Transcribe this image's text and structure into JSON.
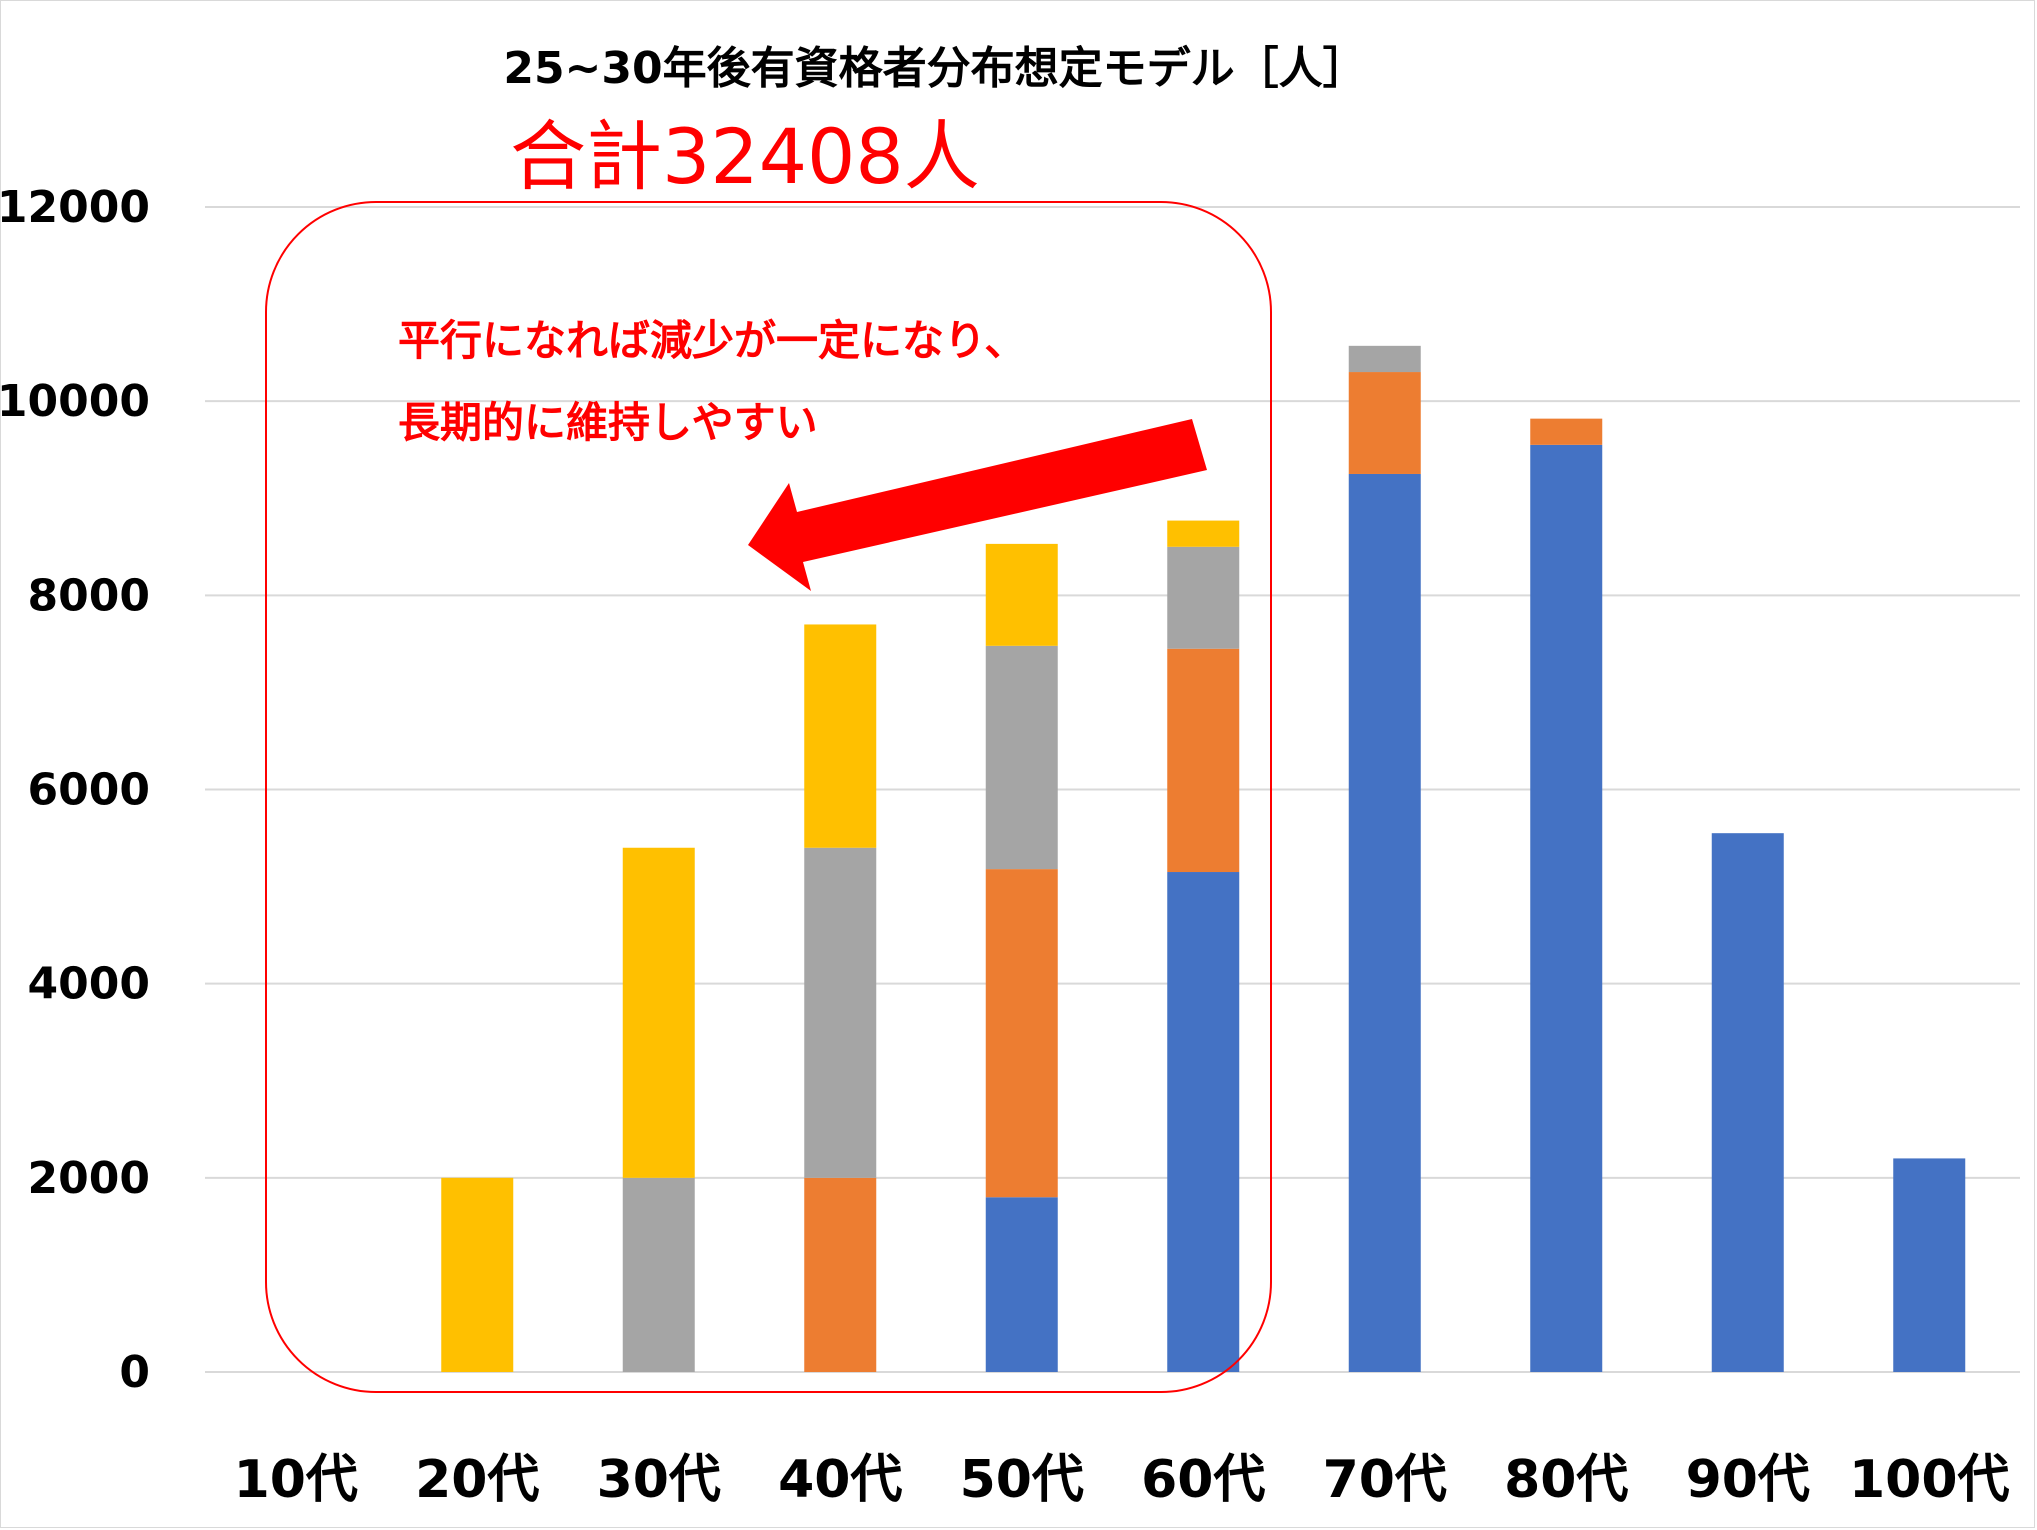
{
  "chart_data": {
    "type": "bar",
    "stacked": true,
    "title": "25~30年後有資格者分布想定モデル［人］",
    "categories": [
      "10代",
      "20代",
      "30代",
      "40代",
      "50代",
      "60代",
      "70代",
      "80代",
      "90代",
      "100代"
    ],
    "series": [
      {
        "color": "#4472c4",
        "values": [
          0,
          0,
          0,
          0,
          1800,
          5150,
          9250,
          9550,
          5550,
          2200
        ]
      },
      {
        "color": "#ed7d31",
        "values": [
          0,
          0,
          0,
          2000,
          3380,
          2300,
          1050,
          270,
          0,
          0
        ]
      },
      {
        "color": "#a5a5a5",
        "values": [
          0,
          0,
          2000,
          3400,
          2300,
          1050,
          270,
          0,
          0,
          0
        ]
      },
      {
        "color": "#ffc000",
        "values": [
          0,
          2000,
          3400,
          2300,
          1050,
          270,
          0,
          0,
          0,
          0
        ]
      }
    ],
    "ylim": [
      0,
      12000
    ],
    "yticks": [
      0,
      2000,
      4000,
      6000,
      8000,
      10000,
      12000
    ],
    "ytick_labels": [
      "0",
      "2000",
      "4000",
      "6000",
      "8000",
      "10000",
      "12000"
    ],
    "grid": true,
    "annotations": {
      "total": "合計32408人",
      "note_lines": [
        "平行になれば減少が一定になり、",
        "長期的に維持しやすい"
      ],
      "highlight_range": [
        "10代",
        "60代"
      ]
    },
    "colors": {
      "annotation": "#ff0000",
      "grid": "#d9d9d9"
    }
  }
}
